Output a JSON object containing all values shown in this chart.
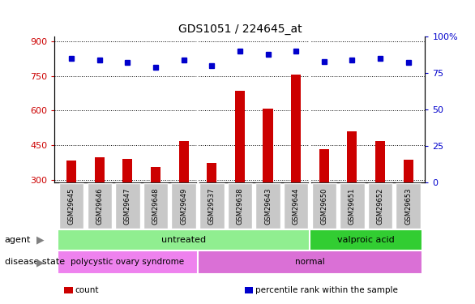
{
  "title": "GDS1051 / 224645_at",
  "samples": [
    "GSM29645",
    "GSM29646",
    "GSM29647",
    "GSM29648",
    "GSM29649",
    "GSM29537",
    "GSM29638",
    "GSM29643",
    "GSM29644",
    "GSM29650",
    "GSM29651",
    "GSM29652",
    "GSM29653"
  ],
  "counts": [
    385,
    400,
    393,
    355,
    470,
    375,
    685,
    610,
    755,
    435,
    510,
    468,
    388
  ],
  "percentiles": [
    85,
    84,
    82,
    79,
    84,
    80,
    90,
    88,
    90,
    83,
    84,
    85,
    82
  ],
  "bar_color": "#cc0000",
  "dot_color": "#0000cc",
  "ylim_left": [
    290,
    920
  ],
  "ylim_right": [
    0,
    100
  ],
  "yticks_left": [
    300,
    450,
    600,
    750,
    900
  ],
  "yticks_right": [
    0,
    25,
    50,
    75,
    100
  ],
  "ytick_right_labels": [
    "0",
    "25",
    "50",
    "75",
    "100%"
  ],
  "agent_groups": [
    {
      "label": "untreated",
      "start": 0,
      "end": 9,
      "color": "#90ee90"
    },
    {
      "label": "valproic acid",
      "start": 9,
      "end": 13,
      "color": "#32cd32"
    }
  ],
  "disease_groups": [
    {
      "label": "polycystic ovary syndrome",
      "start": 0,
      "end": 5,
      "color": "#ee82ee"
    },
    {
      "label": "normal",
      "start": 5,
      "end": 13,
      "color": "#da70d6"
    }
  ],
  "legend_items": [
    {
      "label": "count",
      "color": "#cc0000"
    },
    {
      "label": "percentile rank within the sample",
      "color": "#0000cc"
    }
  ],
  "background_color": "#ffffff",
  "tick_label_bg": "#c8c8c8",
  "group_separators": [
    4.5,
    8.5
  ],
  "bar_width": 0.35
}
